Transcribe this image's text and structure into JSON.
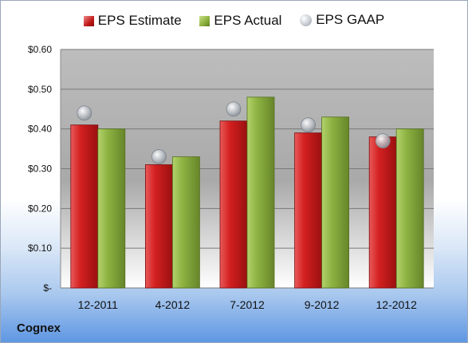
{
  "chart_data": {
    "type": "bar",
    "company": "Cognex",
    "categories": [
      "12-2011",
      "4-2012",
      "7-2012",
      "9-2012",
      "12-2012"
    ],
    "series": [
      {
        "name": "EPS Estimate",
        "kind": "bar",
        "color": "#c81f1f",
        "values": [
          0.41,
          0.31,
          0.42,
          0.39,
          0.38
        ]
      },
      {
        "name": "EPS Actual",
        "kind": "bar",
        "color": "#8db13e",
        "values": [
          0.4,
          0.33,
          0.48,
          0.43,
          0.4
        ]
      },
      {
        "name": "EPS GAAP",
        "kind": "marker",
        "color": "#b9bec4",
        "values": [
          0.44,
          0.33,
          0.45,
          0.41,
          0.37
        ]
      }
    ],
    "ylim": [
      0,
      0.6
    ],
    "yticks": [
      0,
      0.1,
      0.2,
      0.3,
      0.4,
      0.5,
      0.6
    ],
    "ytick_labels": [
      "$-",
      "$0.10",
      "$0.20",
      "$0.30",
      "$0.40",
      "$0.50",
      "$0.60"
    ],
    "legend": "top",
    "grid": true
  }
}
